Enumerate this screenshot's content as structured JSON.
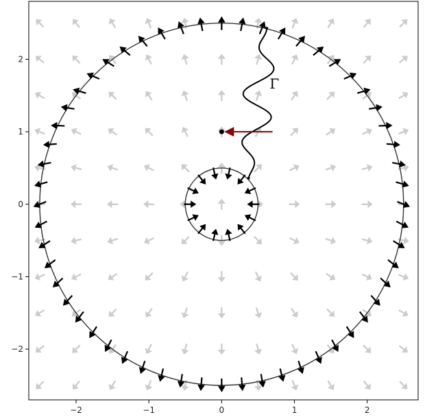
{
  "chart_data": {
    "type": "vector-field",
    "xlim": [
      -2.65,
      2.7
    ],
    "ylim": [
      -2.7,
      2.8
    ],
    "x_ticks": [
      -2,
      -1,
      0,
      1,
      2
    ],
    "y_ticks": [
      -2,
      -1,
      0,
      1,
      2
    ],
    "x_tick_labels": [
      "−2",
      "−1",
      "0",
      "1",
      "2"
    ],
    "y_tick_labels": [
      "−2",
      "−1",
      "0",
      "1",
      "2"
    ],
    "outer_circle": {
      "cx": 0,
      "cy": 0,
      "r": 2.5
    },
    "inner_circle": {
      "cx": 0,
      "cy": 0,
      "r": 0.5
    },
    "point": {
      "x": 0,
      "y": 1
    },
    "vector": {
      "from": [
        0.7,
        1.0
      ],
      "to": [
        0.05,
        1.0
      ],
      "color": "#8b0000"
    },
    "curve_label": "Γ",
    "curve_start": [
      0.37,
      0.36
    ],
    "curve_end": [
      0.62,
      2.43
    ],
    "background_field_color": "#cccccc",
    "boundary_arrow_color": "#000000",
    "outer_boundary_arrows": 56,
    "inner_boundary_arrows": 14
  }
}
